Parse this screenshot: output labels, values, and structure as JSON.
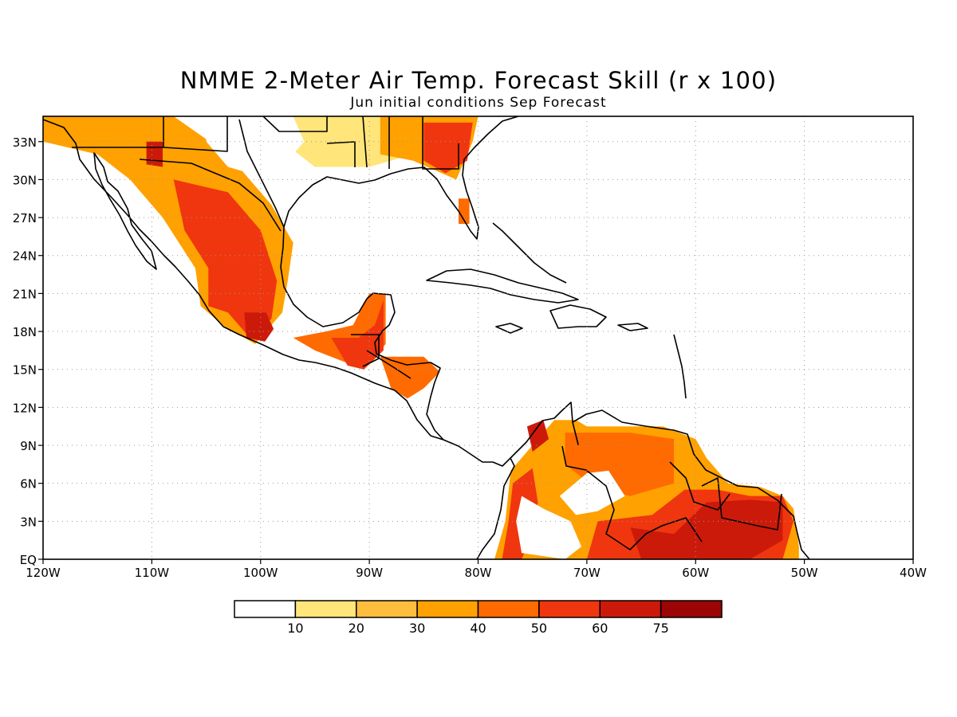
{
  "title": "NMME 2-Meter Air Temp. Forecast Skill (r x 100)",
  "subtitle": "Jun initial conditions  Sep Forecast",
  "map": {
    "lon_range": [
      -120,
      -40
    ],
    "lat_range": [
      0,
      35
    ],
    "x_ticks": [
      {
        "lon": -120,
        "label": "120W"
      },
      {
        "lon": -110,
        "label": "110W"
      },
      {
        "lon": -100,
        "label": "100W"
      },
      {
        "lon": -90,
        "label": "90W"
      },
      {
        "lon": -80,
        "label": "80W"
      },
      {
        "lon": -70,
        "label": "70W"
      },
      {
        "lon": -60,
        "label": "60W"
      },
      {
        "lon": -50,
        "label": "50W"
      },
      {
        "lon": -40,
        "label": "40W"
      }
    ],
    "y_ticks": [
      {
        "lat": 0,
        "label": "EQ"
      },
      {
        "lat": 3,
        "label": "3N"
      },
      {
        "lat": 6,
        "label": "6N"
      },
      {
        "lat": 9,
        "label": "9N"
      },
      {
        "lat": 12,
        "label": "12N"
      },
      {
        "lat": 15,
        "label": "15N"
      },
      {
        "lat": 18,
        "label": "18N"
      },
      {
        "lat": 21,
        "label": "21N"
      },
      {
        "lat": 24,
        "label": "24N"
      },
      {
        "lat": 27,
        "label": "27N"
      },
      {
        "lat": 30,
        "label": "30N"
      },
      {
        "lat": 33,
        "label": "33N"
      }
    ],
    "grid": true
  },
  "legend": {
    "colors": [
      "#ffffff",
      "#ffe57a",
      "#ffbd3e",
      "#ffa100",
      "#ff6b00",
      "#f0360f",
      "#cc1a0a",
      "#9b0505"
    ],
    "labels": [
      "10",
      "20",
      "30",
      "40",
      "50",
      "60",
      "75"
    ]
  },
  "colors": {
    "land_outline": "#000000",
    "grid": "#9a9a9a"
  },
  "skill_regions": [
    {
      "name": "us-south-plains",
      "level": 1,
      "polygon": [
        [
          -120,
          35
        ],
        [
          -105,
          35
        ],
        [
          -98,
          33
        ],
        [
          -95,
          31
        ],
        [
          -90,
          31
        ],
        [
          -86,
          32
        ],
        [
          -82,
          35
        ]
      ]
    },
    {
      "name": "us-southeast",
      "level": 3,
      "polygon": [
        [
          -89,
          35
        ],
        [
          -80,
          35
        ],
        [
          -80.5,
          33
        ],
        [
          -82,
          30
        ],
        [
          -86,
          31.5
        ],
        [
          -89,
          32
        ]
      ]
    },
    {
      "name": "georgia-core",
      "level": 5,
      "polygon": [
        [
          -85,
          34.5
        ],
        [
          -80.5,
          34.5
        ],
        [
          -81,
          31.5
        ],
        [
          -83,
          30.5
        ],
        [
          -85,
          31.5
        ]
      ]
    },
    {
      "name": "florida-spot",
      "level": 4,
      "polygon": [
        [
          -81.8,
          28.5
        ],
        [
          -80.8,
          28.5
        ],
        [
          -80.8,
          26.5
        ],
        [
          -81.8,
          26.5
        ]
      ]
    },
    {
      "name": "mexico-north",
      "level": 3,
      "polygon": [
        [
          -120,
          35
        ],
        [
          -108,
          35
        ],
        [
          -103,
          32
        ],
        [
          -99,
          28
        ],
        [
          -97,
          25
        ],
        [
          -97.5,
          22
        ],
        [
          -98,
          19.5
        ],
        [
          -100.5,
          17
        ],
        [
          -103.5,
          18.5
        ],
        [
          -105.5,
          20
        ],
        [
          -106,
          23
        ],
        [
          -109,
          27
        ],
        [
          -112,
          30
        ],
        [
          -115,
          32
        ],
        [
          -120,
          33
        ]
      ]
    },
    {
      "name": "mexico-central-core",
      "level": 5,
      "polygon": [
        [
          -108,
          30
        ],
        [
          -103,
          29
        ],
        [
          -100,
          26
        ],
        [
          -98.5,
          22
        ],
        [
          -99,
          19
        ],
        [
          -101,
          17.5
        ],
        [
          -103,
          19.5
        ],
        [
          -104.8,
          20
        ],
        [
          -104.8,
          23
        ],
        [
          -107,
          26
        ]
      ]
    },
    {
      "name": "mexico-hotspot",
      "level": 6,
      "polygon": [
        [
          -101.5,
          19.5
        ],
        [
          -99.5,
          19.5
        ],
        [
          -98.8,
          18.2
        ],
        [
          -99.6,
          17.2
        ],
        [
          -101.3,
          17.5
        ]
      ]
    },
    {
      "name": "mexico-nw-core",
      "level": 6,
      "polygon": [
        [
          -110.5,
          33
        ],
        [
          -109,
          33
        ],
        [
          -109,
          31
        ],
        [
          -110.5,
          31.2
        ]
      ]
    },
    {
      "name": "yucatan-south",
      "level": 4,
      "polygon": [
        [
          -97,
          17.5
        ],
        [
          -94,
          18
        ],
        [
          -91.5,
          18.5
        ],
        [
          -90,
          21
        ],
        [
          -88.5,
          21
        ],
        [
          -88.5,
          17
        ],
        [
          -90,
          15.5
        ],
        [
          -92,
          15.5
        ],
        [
          -95,
          16.5
        ]
      ]
    },
    {
      "name": "yucatan-core",
      "level": 5,
      "polygon": [
        [
          -93.5,
          17.5
        ],
        [
          -91,
          17.5
        ],
        [
          -89.5,
          18.5
        ],
        [
          -88.7,
          20.5
        ],
        [
          -88.7,
          16.5
        ],
        [
          -90.5,
          15
        ],
        [
          -92,
          15.3
        ]
      ]
    },
    {
      "name": "honduras",
      "level": 4,
      "polygon": [
        [
          -89,
          16
        ],
        [
          -85,
          16
        ],
        [
          -83.5,
          14.8
        ],
        [
          -85,
          13.5
        ],
        [
          -86.5,
          12.7
        ],
        [
          -88,
          13.5
        ]
      ]
    },
    {
      "name": "south-america-north",
      "level": 3,
      "polygon": [
        [
          -78.5,
          0
        ],
        [
          -77.5,
          3
        ],
        [
          -77,
          7
        ],
        [
          -75,
          9
        ],
        [
          -73,
          11
        ],
        [
          -71,
          11
        ],
        [
          -70,
          10.5
        ],
        [
          -63,
          10.5
        ],
        [
          -60,
          9.5
        ],
        [
          -59,
          8
        ],
        [
          -57,
          6
        ],
        [
          -54,
          5.7
        ],
        [
          -52,
          5
        ],
        [
          -51,
          4
        ],
        [
          -50.5,
          1
        ],
        [
          -50.5,
          0
        ]
      ]
    },
    {
      "name": "sa-west-core",
      "level": 5,
      "polygon": [
        [
          -77.8,
          0
        ],
        [
          -77.2,
          3
        ],
        [
          -76.8,
          6
        ],
        [
          -75,
          7.2
        ],
        [
          -74.5,
          4.5
        ],
        [
          -75,
          2
        ],
        [
          -76,
          0
        ]
      ]
    },
    {
      "name": "sa-colombia-north",
      "level": 6,
      "polygon": [
        [
          -75.5,
          10.5
        ],
        [
          -74,
          11
        ],
        [
          -73.5,
          9.5
        ],
        [
          -75,
          8.5
        ]
      ]
    },
    {
      "name": "sa-venezuela",
      "level": 4,
      "polygon": [
        [
          -72,
          10
        ],
        [
          -66,
          10
        ],
        [
          -62,
          9.5
        ],
        [
          -62,
          6
        ],
        [
          -66,
          5
        ],
        [
          -69,
          5.5
        ],
        [
          -72,
          7.5
        ]
      ]
    },
    {
      "name": "sa-guyana-core",
      "level": 5,
      "polygon": [
        [
          -69,
          3
        ],
        [
          -64,
          3.5
        ],
        [
          -61,
          5.5
        ],
        [
          -58,
          5.5
        ],
        [
          -55,
          5
        ],
        [
          -52,
          5
        ],
        [
          -51,
          3
        ],
        [
          -52,
          0
        ],
        [
          -70,
          0
        ]
      ]
    },
    {
      "name": "sa-guiana-hot",
      "level": 6,
      "polygon": [
        [
          -66,
          2.5
        ],
        [
          -62,
          2
        ],
        [
          -59,
          4.5
        ],
        [
          -55,
          4.7
        ],
        [
          -52,
          4.5
        ],
        [
          -52,
          1.5
        ],
        [
          -55,
          0
        ],
        [
          -65,
          0
        ]
      ]
    }
  ],
  "white_holes": [
    {
      "name": "colombia-interior",
      "polygon": [
        [
          -76,
          5
        ],
        [
          -74,
          4
        ],
        [
          -71.5,
          3
        ],
        [
          -70.5,
          1
        ],
        [
          -72,
          0
        ],
        [
          -76,
          0.5
        ],
        [
          -76.5,
          3
        ]
      ]
    },
    {
      "name": "venezuela-hole",
      "polygon": [
        [
          -72.5,
          5
        ],
        [
          -70,
          6.8
        ],
        [
          -68,
          7
        ],
        [
          -66.5,
          5
        ],
        [
          -69,
          3.8
        ],
        [
          -71,
          3.5
        ]
      ]
    },
    {
      "name": "texas-hole",
      "polygon": [
        [
          -105,
          35
        ],
        [
          -97,
          35
        ],
        [
          -96,
          33
        ],
        [
          -99,
          30
        ],
        [
          -103,
          31
        ],
        [
          -105,
          33
        ]
      ]
    }
  ]
}
